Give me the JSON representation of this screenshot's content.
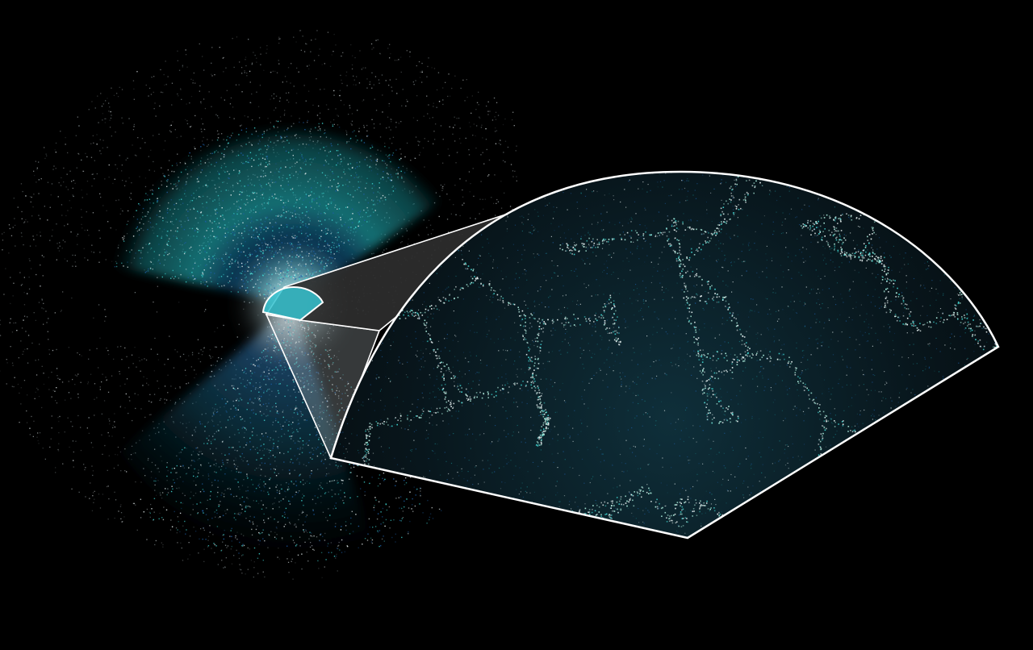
{
  "image": {
    "description_free": true,
    "background_color": "#000000",
    "colors": {
      "cyan_bright": "#3fd6d2",
      "cyan": "#1fa7b0",
      "teal": "#187f86",
      "blue": "#1d5fa6",
      "white_point": "#e9f3f3",
      "mint_point": "#aef0df",
      "outline": "#ffffff",
      "projection_fill": "#2e2e2e"
    }
  }
}
